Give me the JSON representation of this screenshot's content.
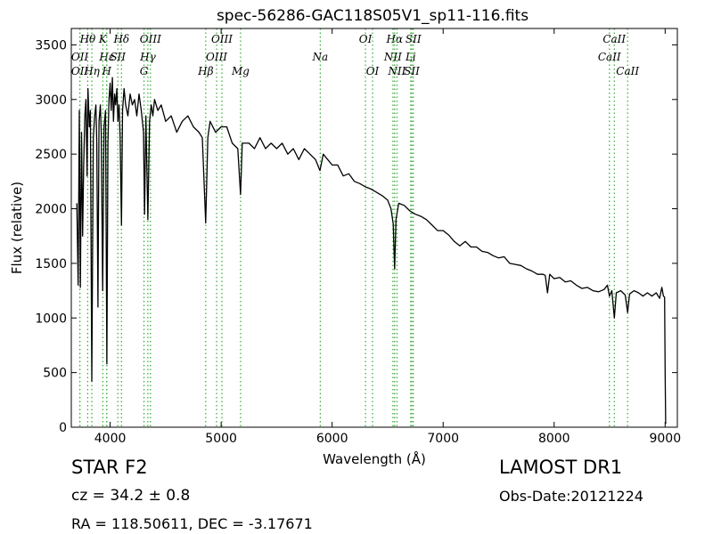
{
  "chart_data": {
    "type": "line",
    "title": "spec-56286-GAC118S05V1_sp11-116.fits",
    "xlabel": "Wavelength (Å)",
    "ylabel": "Flux (relative)",
    "xlim": [
      3650,
      9110
    ],
    "ylim": [
      0,
      3650
    ],
    "xticks": [
      4000,
      5000,
      6000,
      7000,
      8000,
      9000
    ],
    "yticks": [
      0,
      500,
      1000,
      1500,
      2000,
      2500,
      3000,
      3500
    ],
    "grid": false,
    "series": [
      {
        "color": "#000000",
        "points": [
          [
            3700,
            2050
          ],
          [
            3712,
            1300
          ],
          [
            3722,
            2900
          ],
          [
            3732,
            1280
          ],
          [
            3742,
            2700
          ],
          [
            3752,
            1750
          ],
          [
            3762,
            2400
          ],
          [
            3772,
            2850
          ],
          [
            3782,
            3000
          ],
          [
            3792,
            2300
          ],
          [
            3800,
            3100
          ],
          [
            3812,
            2750
          ],
          [
            3822,
            2900
          ],
          [
            3835,
            420
          ],
          [
            3848,
            2650
          ],
          [
            3860,
            2850
          ],
          [
            3872,
            2950
          ],
          [
            3880,
            2600
          ],
          [
            3890,
            1100
          ],
          [
            3900,
            2800
          ],
          [
            3912,
            2950
          ],
          [
            3920,
            2700
          ],
          [
            3933,
            1250
          ],
          [
            3945,
            2750
          ],
          [
            3958,
            2900
          ],
          [
            3970,
            580
          ],
          [
            3980,
            2600
          ],
          [
            3990,
            3000
          ],
          [
            4000,
            3150
          ],
          [
            4010,
            2900
          ],
          [
            4020,
            3200
          ],
          [
            4030,
            2800
          ],
          [
            4040,
            3050
          ],
          [
            4050,
            2950
          ],
          [
            4060,
            3100
          ],
          [
            4070,
            2800
          ],
          [
            4080,
            2950
          ],
          [
            4090,
            2650
          ],
          [
            4102,
            1850
          ],
          [
            4112,
            2900
          ],
          [
            4125,
            3100
          ],
          [
            4140,
            2950
          ],
          [
            4160,
            2850
          ],
          [
            4180,
            3050
          ],
          [
            4200,
            2950
          ],
          [
            4220,
            3000
          ],
          [
            4240,
            2850
          ],
          [
            4260,
            3050
          ],
          [
            4280,
            2900
          ],
          [
            4300,
            2700
          ],
          [
            4310,
            1950
          ],
          [
            4322,
            2850
          ],
          [
            4340,
            1900
          ],
          [
            4355,
            2800
          ],
          [
            4370,
            2950
          ],
          [
            4385,
            2850
          ],
          [
            4400,
            3000
          ],
          [
            4430,
            2900
          ],
          [
            4460,
            2950
          ],
          [
            4500,
            2800
          ],
          [
            4550,
            2850
          ],
          [
            4600,
            2700
          ],
          [
            4650,
            2800
          ],
          [
            4700,
            2850
          ],
          [
            4750,
            2750
          ],
          [
            4800,
            2700
          ],
          [
            4830,
            2650
          ],
          [
            4861,
            1870
          ],
          [
            4880,
            2650
          ],
          [
            4900,
            2800
          ],
          [
            4950,
            2700
          ],
          [
            5000,
            2750
          ],
          [
            5050,
            2750
          ],
          [
            5100,
            2600
          ],
          [
            5150,
            2550
          ],
          [
            5175,
            2130
          ],
          [
            5190,
            2600
          ],
          [
            5250,
            2600
          ],
          [
            5300,
            2550
          ],
          [
            5350,
            2650
          ],
          [
            5400,
            2550
          ],
          [
            5450,
            2600
          ],
          [
            5500,
            2550
          ],
          [
            5550,
            2600
          ],
          [
            5600,
            2500
          ],
          [
            5650,
            2550
          ],
          [
            5700,
            2450
          ],
          [
            5750,
            2550
          ],
          [
            5800,
            2500
          ],
          [
            5850,
            2450
          ],
          [
            5890,
            2350
          ],
          [
            5920,
            2500
          ],
          [
            5960,
            2450
          ],
          [
            6000,
            2400
          ],
          [
            6050,
            2400
          ],
          [
            6100,
            2300
          ],
          [
            6150,
            2320
          ],
          [
            6200,
            2250
          ],
          [
            6250,
            2230
          ],
          [
            6300,
            2200
          ],
          [
            6350,
            2180
          ],
          [
            6400,
            2150
          ],
          [
            6450,
            2120
          ],
          [
            6500,
            2080
          ],
          [
            6530,
            2000
          ],
          [
            6550,
            1860
          ],
          [
            6563,
            1450
          ],
          [
            6575,
            1900
          ],
          [
            6600,
            2050
          ],
          [
            6650,
            2030
          ],
          [
            6700,
            1980
          ],
          [
            6750,
            1950
          ],
          [
            6800,
            1930
          ],
          [
            6850,
            1900
          ],
          [
            6900,
            1850
          ],
          [
            6950,
            1800
          ],
          [
            7000,
            1800
          ],
          [
            7050,
            1760
          ],
          [
            7100,
            1700
          ],
          [
            7150,
            1660
          ],
          [
            7200,
            1700
          ],
          [
            7250,
            1650
          ],
          [
            7300,
            1650
          ],
          [
            7350,
            1610
          ],
          [
            7400,
            1600
          ],
          [
            7450,
            1570
          ],
          [
            7500,
            1550
          ],
          [
            7550,
            1560
          ],
          [
            7600,
            1500
          ],
          [
            7650,
            1490
          ],
          [
            7700,
            1480
          ],
          [
            7750,
            1450
          ],
          [
            7800,
            1430
          ],
          [
            7850,
            1400
          ],
          [
            7900,
            1400
          ],
          [
            7920,
            1390
          ],
          [
            7940,
            1230
          ],
          [
            7960,
            1400
          ],
          [
            8000,
            1360
          ],
          [
            8050,
            1370
          ],
          [
            8100,
            1330
          ],
          [
            8150,
            1340
          ],
          [
            8200,
            1300
          ],
          [
            8250,
            1270
          ],
          [
            8300,
            1280
          ],
          [
            8350,
            1250
          ],
          [
            8400,
            1240
          ],
          [
            8450,
            1260
          ],
          [
            8480,
            1300
          ],
          [
            8498,
            1200
          ],
          [
            8520,
            1250
          ],
          [
            8542,
            1000
          ],
          [
            8560,
            1230
          ],
          [
            8600,
            1250
          ],
          [
            8640,
            1210
          ],
          [
            8662,
            1050
          ],
          [
            8680,
            1220
          ],
          [
            8720,
            1250
          ],
          [
            8760,
            1230
          ],
          [
            8800,
            1200
          ],
          [
            8840,
            1230
          ],
          [
            8880,
            1200
          ],
          [
            8920,
            1230
          ],
          [
            8950,
            1180
          ],
          [
            8970,
            1280
          ],
          [
            8985,
            1200
          ],
          [
            8995,
            1190
          ],
          [
            9000,
            500
          ],
          [
            9005,
            30
          ]
        ]
      }
    ],
    "lines": [
      {
        "label": "OII",
        "x": 3727,
        "row": 2
      },
      {
        "label": "OII",
        "x": 3727,
        "row": 1
      },
      {
        "label": "Hθ",
        "x": 3798,
        "row": 0
      },
      {
        "label": "Hη",
        "x": 3835,
        "row": 2
      },
      {
        "label": "K",
        "x": 3934,
        "row": 0
      },
      {
        "label": "Hε",
        "x": 3970,
        "row": 1
      },
      {
        "label": "H",
        "x": 3969,
        "row": 2
      },
      {
        "label": "SII",
        "x": 4069,
        "row": 1
      },
      {
        "label": "Hδ",
        "x": 4102,
        "row": 0
      },
      {
        "label": "OIII",
        "x": 4363,
        "row": 0
      },
      {
        "label": "Hγ",
        "x": 4340,
        "row": 1
      },
      {
        "label": "G",
        "x": 4305,
        "row": 2
      },
      {
        "label": "Hβ",
        "x": 4861,
        "row": 2
      },
      {
        "label": "OIII",
        "x": 5007,
        "row": 0
      },
      {
        "label": "OIII",
        "x": 4959,
        "row": 1
      },
      {
        "label": "Mg",
        "x": 5175,
        "row": 2
      },
      {
        "label": "Na",
        "x": 5893,
        "row": 1
      },
      {
        "label": "OI",
        "x": 6300,
        "row": 0
      },
      {
        "label": "OI",
        "x": 6364,
        "row": 2
      },
      {
        "label": "Hα",
        "x": 6563,
        "row": 0
      },
      {
        "label": "NII",
        "x": 6548,
        "row": 1
      },
      {
        "label": "NII",
        "x": 6584,
        "row": 2
      },
      {
        "label": "Li",
        "x": 6708,
        "row": 1
      },
      {
        "label": "SII",
        "x": 6731,
        "row": 0
      },
      {
        "label": "SII",
        "x": 6717,
        "row": 2
      },
      {
        "label": "CaII",
        "x": 8542,
        "row": 0
      },
      {
        "label": "CaII",
        "x": 8498,
        "row": 1
      },
      {
        "label": "CaII",
        "x": 8662,
        "row": 2
      }
    ],
    "line_color": "#33aa33"
  },
  "info": {
    "star": "STAR   F2",
    "cz": "cz = 34.2  ± 0.8",
    "radec": "RA = 118.50611, DEC = -3.17671",
    "survey": "LAMOST DR1",
    "obsdate": "Obs-Date:20121224"
  }
}
